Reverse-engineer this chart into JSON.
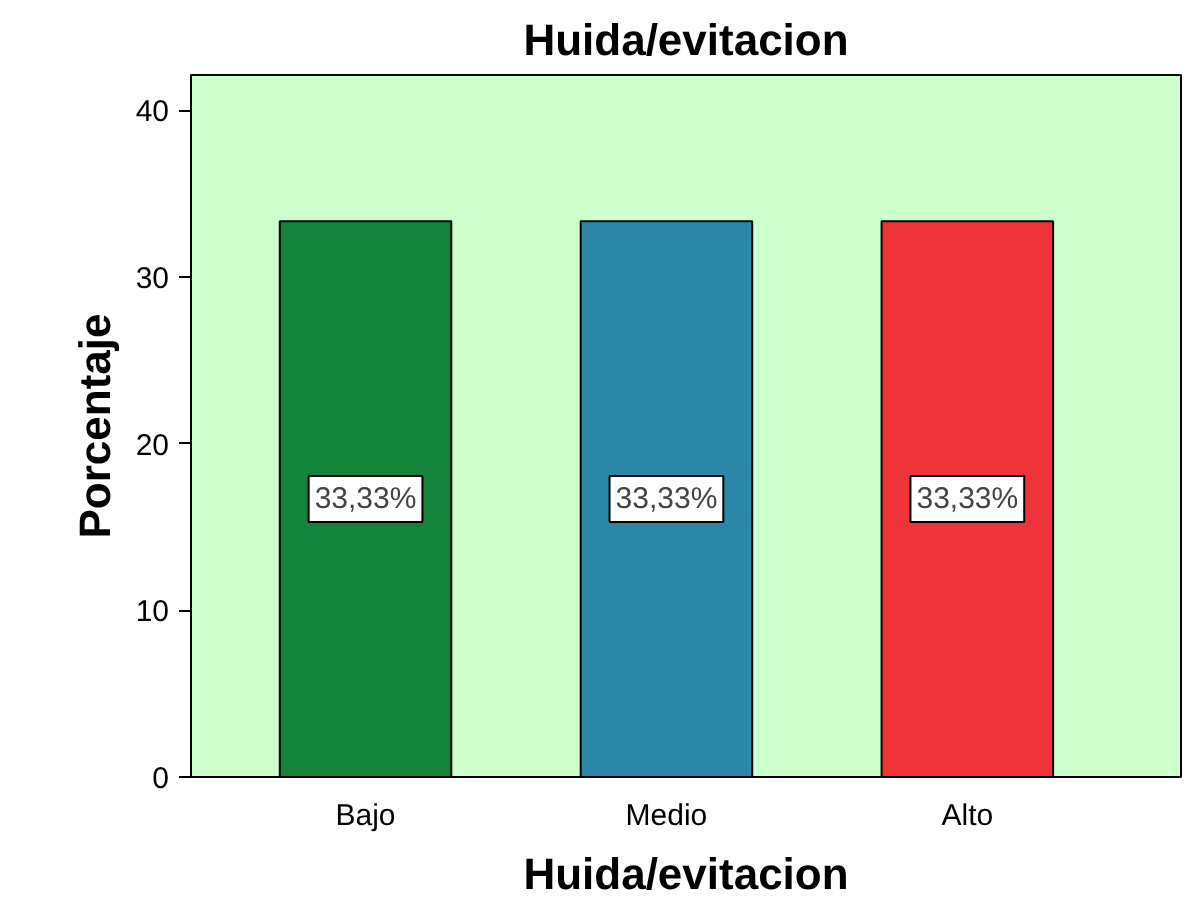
{
  "chart_data": {
    "type": "bar",
    "title": "Huida/evitacion",
    "xlabel": "Huida/evitacion",
    "ylabel": "Porcentaje",
    "categories": [
      "Bajo",
      "Medio",
      "Alto"
    ],
    "values": [
      33.33,
      33.33,
      33.33
    ],
    "colors": [
      "#13833c",
      "#2a87a8",
      "#ee3438"
    ],
    "value_labels": [
      "33,33%",
      "33,33%",
      "33,33%"
    ],
    "ylim": [
      0,
      42.1
    ],
    "yticks": [
      0,
      10,
      20,
      30,
      40
    ],
    "grid": false
  }
}
